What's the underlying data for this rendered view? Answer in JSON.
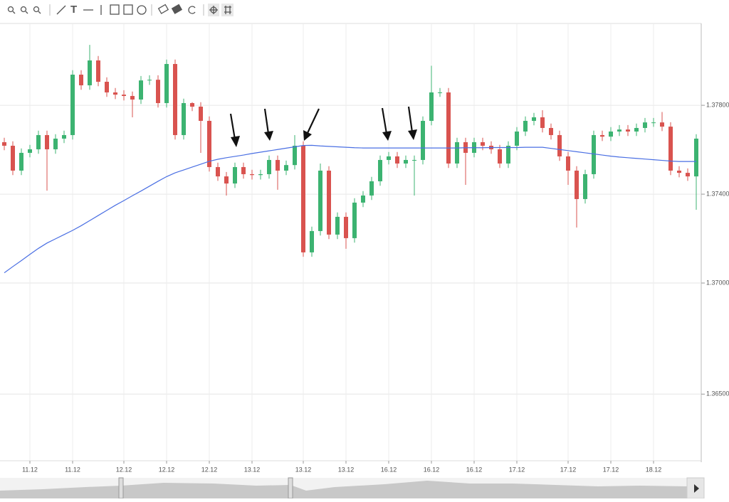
{
  "chart_data": {
    "type": "candlestick",
    "categories": [
      null,
      null,
      null,
      "11.12",
      null,
      null,
      null,
      null,
      "11.12",
      null,
      null,
      null,
      null,
      null,
      "12.12",
      null,
      null,
      null,
      null,
      "12.12",
      null,
      null,
      null,
      null,
      "12.12",
      null,
      null,
      null,
      null,
      "13.12",
      null,
      null,
      null,
      null,
      null,
      "13.12",
      null,
      null,
      null,
      null,
      "13.12",
      null,
      null,
      null,
      null,
      "16.12",
      null,
      null,
      null,
      null,
      "16.12",
      null,
      null,
      null,
      null,
      "16.12",
      null,
      null,
      null,
      null,
      "17.12",
      null,
      null,
      null,
      null,
      null,
      "17.12",
      null,
      null,
      null,
      null,
      "17.12",
      null,
      null,
      null,
      null,
      "18.12",
      null,
      null,
      null,
      null,
      null
    ],
    "open": [
      1.37634,
      1.37618,
      1.37506,
      1.37586,
      1.37602,
      1.37666,
      1.37602,
      1.3765,
      1.37666,
      1.37938,
      1.3789,
      1.38002,
      1.37906,
      1.37858,
      1.37848,
      1.37842,
      1.37826,
      1.37912,
      1.37915,
      1.3781,
      1.37986,
      1.37666,
      1.3781,
      1.37794,
      1.3773,
      1.37522,
      1.3748,
      1.37448,
      1.37522,
      1.3749,
      1.37486,
      1.3749,
      1.37554,
      1.37506,
      1.37531,
      1.37618,
      1.37138,
      1.37234,
      1.37506,
      1.37218,
      1.37298,
      1.37202,
      1.37362,
      1.37394,
      1.37458,
      1.37554,
      1.3757,
      1.37538,
      1.37554,
      1.37554,
      1.3773,
      1.37858,
      1.37858,
      1.37538,
      1.37634,
      1.37586,
      1.37634,
      1.37618,
      1.37602,
      1.37538,
      1.37618,
      1.37682,
      1.3773,
      1.37746,
      1.37698,
      1.37666,
      1.3757,
      1.37506,
      1.37378,
      1.3749,
      1.37666,
      1.37659,
      1.37682,
      1.37691,
      1.37682,
      1.37698,
      1.37723,
      1.37723,
      1.37704,
      1.37506,
      1.37496,
      1.3748
    ],
    "high": [
      1.37654,
      1.37638,
      1.37606,
      1.37622,
      1.37686,
      1.37686,
      1.3767,
      1.37686,
      1.37958,
      1.37958,
      1.38072,
      1.38022,
      1.37926,
      1.37878,
      1.37868,
      1.37862,
      1.37932,
      1.37935,
      1.37935,
      1.38006,
      1.38006,
      1.3783,
      1.37814,
      1.37814,
      1.3775,
      1.37542,
      1.375,
      1.37542,
      1.37542,
      1.3751,
      1.3751,
      1.37574,
      1.37574,
      1.37551,
      1.37666,
      1.37638,
      1.37254,
      1.37538,
      1.37526,
      1.37318,
      1.37318,
      1.37382,
      1.37414,
      1.37478,
      1.37574,
      1.3759,
      1.3759,
      1.37574,
      1.37574,
      1.3775,
      1.37978,
      1.37878,
      1.37878,
      1.37654,
      1.37654,
      1.37654,
      1.37654,
      1.37638,
      1.37622,
      1.37638,
      1.37702,
      1.3775,
      1.37766,
      1.37778,
      1.37718,
      1.37686,
      1.3759,
      1.37526,
      1.3751,
      1.37686,
      1.37686,
      1.37702,
      1.37711,
      1.37711,
      1.37718,
      1.37743,
      1.37743,
      1.3777,
      1.37724,
      1.37526,
      1.37516,
      1.3767
    ],
    "low": [
      1.37598,
      1.37486,
      1.37486,
      1.37566,
      1.37582,
      1.37416,
      1.37582,
      1.3763,
      1.37646,
      1.3787,
      1.3787,
      1.37886,
      1.37838,
      1.37828,
      1.37822,
      1.37746,
      1.37806,
      1.37892,
      1.3779,
      1.3779,
      1.37646,
      1.37646,
      1.37774,
      1.37586,
      1.37502,
      1.3746,
      1.37394,
      1.37428,
      1.3747,
      1.37466,
      1.37466,
      1.3747,
      1.3742,
      1.37486,
      1.37511,
      1.37118,
      1.37118,
      1.37214,
      1.37198,
      1.37198,
      1.37154,
      1.37182,
      1.37342,
      1.37374,
      1.37438,
      1.37534,
      1.37518,
      1.37518,
      1.37394,
      1.37534,
      1.3771,
      1.37838,
      1.37518,
      1.37518,
      1.37442,
      1.37566,
      1.37598,
      1.37582,
      1.37518,
      1.37518,
      1.37598,
      1.37662,
      1.3771,
      1.37678,
      1.37646,
      1.3755,
      1.37442,
      1.3725,
      1.37358,
      1.3747,
      1.37639,
      1.37639,
      1.37662,
      1.37662,
      1.37662,
      1.37678,
      1.37703,
      1.37684,
      1.37486,
      1.37476,
      1.3746,
      1.3733
    ],
    "close": [
      1.37618,
      1.37506,
      1.37586,
      1.37602,
      1.37666,
      1.37602,
      1.3765,
      1.37666,
      1.37938,
      1.3789,
      1.38002,
      1.37906,
      1.37858,
      1.37848,
      1.37842,
      1.37826,
      1.37912,
      1.37915,
      1.3781,
      1.37986,
      1.37666,
      1.3781,
      1.37794,
      1.3773,
      1.37522,
      1.3748,
      1.37448,
      1.37522,
      1.3749,
      1.37486,
      1.3749,
      1.37554,
      1.37506,
      1.37531,
      1.37618,
      1.37138,
      1.37234,
      1.37506,
      1.37218,
      1.37298,
      1.37202,
      1.37362,
      1.37394,
      1.37458,
      1.37554,
      1.3757,
      1.37538,
      1.37554,
      1.37554,
      1.3773,
      1.37858,
      1.37858,
      1.37538,
      1.37634,
      1.37586,
      1.37634,
      1.37618,
      1.37602,
      1.37538,
      1.37618,
      1.37682,
      1.3773,
      1.37746,
      1.37698,
      1.37666,
      1.3757,
      1.37506,
      1.37378,
      1.3749,
      1.37666,
      1.37659,
      1.37682,
      1.37691,
      1.37682,
      1.37698,
      1.37723,
      1.37723,
      1.37704,
      1.37506,
      1.37496,
      1.3748,
      1.3765
    ],
    "up_color": "#3cb371",
    "down_color": "#d9534f",
    "overlay": {
      "type": "line",
      "color": "#4a6fe3",
      "values": [
        1.37046,
        1.37074,
        1.37101,
        1.37129,
        1.37156,
        1.3718,
        1.37199,
        1.37218,
        1.37237,
        1.37258,
        1.37281,
        1.37304,
        1.37327,
        1.3735,
        1.37371,
        1.37393,
        1.37414,
        1.37436,
        1.37458,
        1.37479,
        1.37496,
        1.37509,
        1.37522,
        1.37535,
        1.37548,
        1.37557,
        1.37564,
        1.3757,
        1.37576,
        1.37583,
        1.37589,
        1.37595,
        1.37601,
        1.37607,
        1.37613,
        1.37619,
        1.3762,
        1.37617,
        1.37615,
        1.37613,
        1.37611,
        1.37609,
        1.37608,
        1.37608,
        1.37608,
        1.37608,
        1.37608,
        1.37608,
        1.37608,
        1.37608,
        1.37608,
        1.37608,
        1.37608,
        1.37608,
        1.37609,
        1.37609,
        1.37609,
        1.3761,
        1.3761,
        1.3761,
        1.3761,
        1.37611,
        1.37611,
        1.37611,
        1.37606,
        1.37601,
        1.37596,
        1.37591,
        1.37586,
        1.37581,
        1.37576,
        1.37571,
        1.37567,
        1.37564,
        1.37561,
        1.37558,
        1.37555,
        1.37552,
        1.37549,
        1.37547,
        1.37547,
        1.37547
      ]
    },
    "ylim": [
      1.362,
      1.38162
    ],
    "yticks": [
      {
        "value": 1.365,
        "label": "1.36500"
      },
      {
        "value": 1.37,
        "label": "1.37000"
      },
      {
        "value": 1.374,
        "label": "1.37400"
      },
      {
        "value": 1.378,
        "label": "1.37800"
      }
    ],
    "grid": true
  }
}
